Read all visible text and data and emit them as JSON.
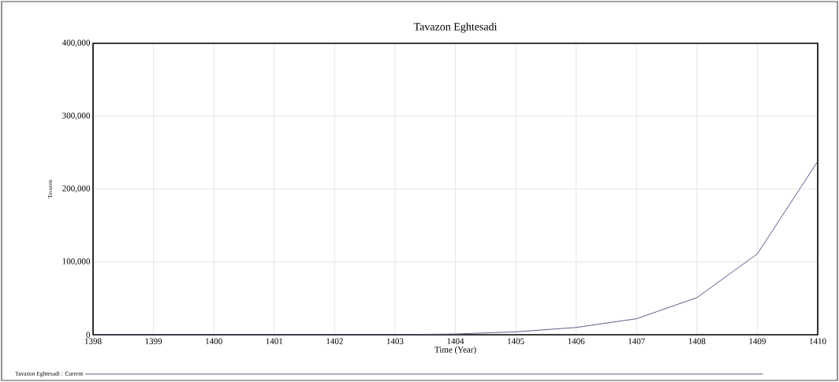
{
  "chart_data": {
    "type": "line",
    "title": "Tavazon Eghtesadi",
    "xlabel": "Time (Year)",
    "ylabel": "Tavazon",
    "x": [
      1398,
      1399,
      1400,
      1401,
      1402,
      1403,
      1404,
      1405,
      1406,
      1407,
      1408,
      1409,
      1410
    ],
    "series": [
      {
        "name": "Tavazon Eghtesadi : Current",
        "color": "#4b4b7d",
        "values": [
          0,
          0,
          0,
          0,
          0,
          0,
          1000,
          4000,
          10000,
          22000,
          51000,
          111000,
          238000
        ]
      }
    ],
    "xlim": [
      1398,
      1410
    ],
    "xticks": [
      1398,
      1399,
      1400,
      1401,
      1402,
      1403,
      1404,
      1405,
      1406,
      1407,
      1408,
      1409,
      1410
    ],
    "ylim": [
      0,
      400000
    ],
    "yticks": [
      {
        "value": 0,
        "label": "0"
      },
      {
        "value": 100000,
        "label": "100,000"
      },
      {
        "value": 200000,
        "label": "200,000"
      },
      {
        "value": 300000,
        "label": "300,000"
      },
      {
        "value": 400000,
        "label": "400,000"
      }
    ],
    "grid": true,
    "legend": "bottom",
    "marker": "none",
    "line_style": "solid"
  }
}
